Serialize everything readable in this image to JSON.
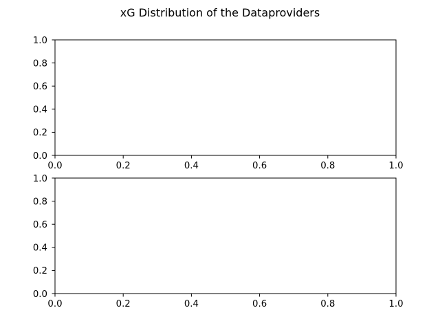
{
  "figure": {
    "title": "xG Distribution of the Dataproviders",
    "background": "#ffffff",
    "axis_color": "#000000"
  },
  "chart_data": [
    {
      "type": "line",
      "title": "",
      "xlabel": "",
      "ylabel": "",
      "xlim": [
        0.0,
        1.0
      ],
      "ylim": [
        0.0,
        1.0
      ],
      "xticks": [
        "0.0",
        "0.2",
        "0.4",
        "0.6",
        "0.8",
        "1.0"
      ],
      "yticks": [
        "0.0",
        "0.2",
        "0.4",
        "0.6",
        "0.8",
        "1.0"
      ],
      "grid": false,
      "series": []
    },
    {
      "type": "line",
      "title": "",
      "xlabel": "",
      "ylabel": "",
      "xlim": [
        0.0,
        1.0
      ],
      "ylim": [
        0.0,
        1.0
      ],
      "xticks": [
        "0.0",
        "0.2",
        "0.4",
        "0.6",
        "0.8",
        "1.0"
      ],
      "yticks": [
        "0.0",
        "0.2",
        "0.4",
        "0.6",
        "0.8",
        "1.0"
      ],
      "grid": false,
      "series": []
    }
  ]
}
